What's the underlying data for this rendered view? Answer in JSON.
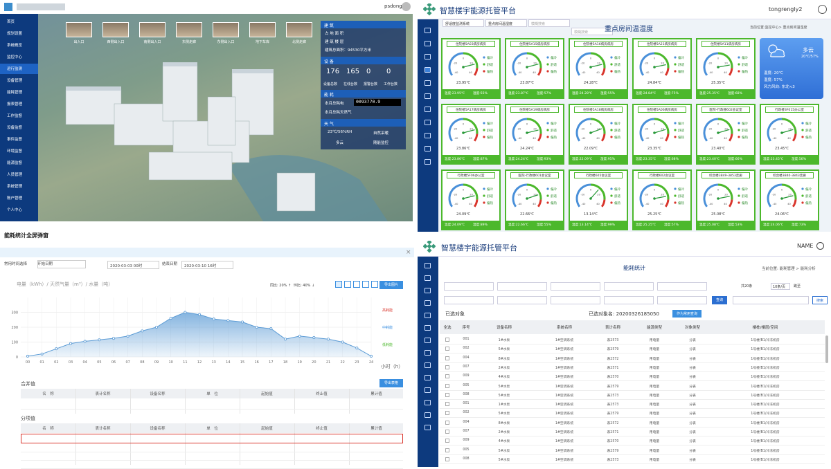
{
  "tl": {
    "user": "psdong1",
    "menu": [
      "首页",
      "规划设置",
      "系统概览",
      "监控中心",
      "运行监测",
      "设备管理",
      "能耗管理",
      "报表管理",
      "工作监督",
      "设备监督",
      "事件监督",
      "环境监督",
      "能源监督",
      "人员管理",
      "系统管理",
      "账户管理",
      "个人中心"
    ],
    "cameras": [
      "出入口",
      "西侧出入口",
      "南侧出入口",
      "东侧走廊",
      "东侧出入口",
      "地下车库",
      "北侧走廊"
    ],
    "building": {
      "title": "建 筑",
      "lines": [
        "占 地 面 积",
        "建 筑 楼 层",
        "建筑总面积：94530平方米"
      ]
    },
    "devices": {
      "title": "设 备",
      "nums": [
        "176",
        "165",
        "0",
        "0"
      ],
      "labels": [
        "设备总数",
        "在线台数",
        "报警台数",
        "工作台数"
      ]
    },
    "energy": {
      "title": "能 耗",
      "lines": [
        "本月总耗电",
        "本月总耗天然气"
      ],
      "reading": "0093770.9"
    },
    "weather": {
      "title": "天 气",
      "temp": "23℃/56%RH",
      "sky": "多云",
      "items": [
        "自然采暖",
        "随能监控"
      ]
    }
  },
  "tr": {
    "title": "智慧楼宇能源托管平台",
    "user": "tongrengly2",
    "filters": [
      "舒适度监测系统",
      "重点房间温湿度",
      "模糊搜索",
      "模糊搜索"
    ],
    "heading": "重点房间温湿度",
    "breadcrumb": "当前位置:监控中心> 重点房间温湿度",
    "gauge_ticks": [
      -40,
      -20,
      0,
      20,
      40
    ],
    "comfort_labels": [
      "偏冷",
      "舒适",
      "偏热"
    ],
    "cards": [
      {
        "name": "住院楼5A03病房病房",
        "temp": 23.95,
        "temp_label": "23.95℃",
        "t_text": "温度:23.95℃",
        "h_text": "湿度:55%"
      },
      {
        "name": "住院楼5A15病房病房",
        "temp": 23.87,
        "temp_label": "23.87℃",
        "t_text": "温度:23.87℃",
        "h_text": "湿度:57%"
      },
      {
        "name": "住院楼5A16病房病房",
        "temp": 24.28,
        "temp_label": "24.28℃",
        "t_text": "温度:24.28℃",
        "h_text": "湿度:55%"
      },
      {
        "name": "住院楼5A21病房病房",
        "temp": 24.84,
        "temp_label": "24.84℃",
        "t_text": "温度:24.84℃",
        "h_text": "湿度:75%"
      },
      {
        "name": "住院楼5A11病房病房",
        "temp": 25.35,
        "temp_label": "25.35℃",
        "t_text": "温度:25.35℃",
        "h_text": "湿度:68%"
      },
      null,
      {
        "name": "住院楼5A17病房病房",
        "temp": 23.86,
        "temp_label": "23.86℃",
        "t_text": "温度:23.86℃",
        "h_text": "湿度:87%"
      },
      {
        "name": "住院楼5A19病房病房",
        "temp": 24.24,
        "temp_label": "24.24℃",
        "t_text": "温度:24.24℃",
        "h_text": "湿度:93%"
      },
      {
        "name": "住院楼5A18病房病房",
        "temp": 22.09,
        "temp_label": "22.09℃",
        "t_text": "温度:22.09℃",
        "h_text": "湿度:95%"
      },
      {
        "name": "住院楼5A06病房病房",
        "temp": 23.35,
        "temp_label": "23.35℃",
        "t_text": "温度:23.35℃",
        "h_text": "湿度:68%"
      },
      {
        "name": "医院-行政楼602会议室",
        "temp": 23.4,
        "temp_label": "23.40℃",
        "t_text": "温度:23.40℃",
        "h_text": "湿度:66%"
      },
      {
        "name": "行政楼3F015办公室",
        "temp": 23.45,
        "temp_label": "23.45℃",
        "t_text": "温度:23.45℃",
        "h_text": "湿度:56%"
      },
      {
        "name": "行政楼5F06办公室",
        "temp": 24.09,
        "temp_label": "24.09℃",
        "t_text": "温度:24.09℃",
        "h_text": "湿度:89%"
      },
      {
        "name": "医院-行政楼601会议室",
        "temp": 22.66,
        "temp_label": "22.66℃",
        "t_text": "温度:22.66℃",
        "h_text": "湿度:55%"
      },
      {
        "name": "行政楼605会议室",
        "temp": 13.14,
        "temp_label": "13.14℃",
        "t_text": "温度:13.14℃",
        "h_text": "湿度:99%"
      },
      {
        "name": "行政楼602会议室",
        "temp": 25.25,
        "temp_label": "25.25℃",
        "t_text": "温度:25.25℃",
        "h_text": "湿度:57%"
      },
      {
        "name": "综合楼3849-3853走廊",
        "temp": 25.08,
        "temp_label": "25.08℃",
        "t_text": "温度:25.08℃",
        "h_text": "湿度:53%"
      },
      {
        "name": "综合楼3840-3843走廊",
        "temp": 24.06,
        "temp_label": "24.06℃",
        "t_text": "温度:24.06℃",
        "h_text": "湿度:73%"
      }
    ],
    "weather": {
      "sky": "多云",
      "range": "20℃/57%",
      "lines": [
        "温度: 20℃",
        "湿度: 57%",
        "风力风向: 东北<3"
      ]
    }
  },
  "bl": {
    "title": "能耗统计全屏弹窗",
    "filters": [
      "常用时间选择",
      "开始日期",
      "2020-03-03 00时",
      "结束日期",
      "2020-03-10 16时"
    ],
    "yoy": "同比: 20% ↑",
    "mom": "环比: 40% ↓",
    "export_img": "导出图片",
    "levels": [
      "高耗能",
      "中耗能",
      "低耗能"
    ],
    "merged": "合并值",
    "export_table": "导出表格",
    "split": "分项值",
    "headers": [
      "名　称",
      "表计名称",
      "设备名称",
      "单　位",
      "起始值",
      "终止值",
      "累计值"
    ]
  },
  "chart_data": {
    "type": "area",
    "title": "电量（kWh）/ 天然气量（m³）/ 水量（吨）",
    "x_label": "小时（h）",
    "categories": [
      "00",
      "01",
      "02",
      "03",
      "04",
      "05",
      "06",
      "07",
      "08",
      "09",
      "10",
      "11",
      "12",
      "13",
      "14",
      "15",
      "16",
      "17",
      "18",
      "19",
      "20",
      "21",
      "22",
      "23",
      "24"
    ],
    "values": [
      5,
      20,
      55,
      90,
      105,
      115,
      125,
      140,
      175,
      200,
      260,
      300,
      285,
      255,
      245,
      235,
      200,
      190,
      120,
      140,
      130,
      120,
      100,
      60,
      5
    ],
    "color": "#5b9bd5",
    "ylim": [
      0,
      400
    ],
    "yticks": [
      0,
      100,
      200,
      300
    ],
    "grid": true
  },
  "br": {
    "title": "智慧楼宇能源托管平台",
    "user": "NAME",
    "heading": "能耗统计",
    "breadcrumb": "当前位置: 能耗管理 > 能耗分析",
    "total": "共20条",
    "page_size": "10条/页",
    "goto": "跳至",
    "query": "查询",
    "search": "搜索",
    "selected": "已选对象",
    "selected_name": "已选对象名: 20200326185050",
    "save_query": "作为常用查询",
    "headers": [
      "全选",
      "序号",
      "设备名称",
      "系统名称",
      "表计名称",
      "能源类型",
      "对象类型",
      "楼栋/楼层/空间"
    ],
    "rows": [
      [
        "001",
        "1#水泵",
        "1#空调系统",
        "表2573",
        "用电量",
        "分表",
        "1号楼/B1/冷冻机房"
      ],
      [
        "002",
        "5#水泵",
        "1#空调系统",
        "表2579",
        "用电量",
        "分表",
        "1号楼/B1/冷冻机房"
      ],
      [
        "004",
        "8#水泵",
        "1#空调系统",
        "表2572",
        "用电量",
        "分表",
        "1号楼/B1/冷冻机房"
      ],
      [
        "007",
        "2#水泵",
        "1#空调系统",
        "表2571",
        "用电量",
        "分表",
        "1号楼/B1/冷冻机房"
      ],
      [
        "009",
        "4#水泵",
        "1#空调系统",
        "表2570",
        "用电量",
        "分表",
        "1号楼/B1/冷冻机房"
      ],
      [
        "005",
        "5#水泵",
        "1#空调系统",
        "表2579",
        "用电量",
        "分表",
        "1号楼/B1/冷冻机房"
      ],
      [
        "008",
        "5#水泵",
        "1#空调系统",
        "表2573",
        "用电量",
        "分表",
        "1号楼/B1/冷冻机房"
      ],
      [
        "001",
        "1#水泵",
        "1#空调系统",
        "表2573",
        "用电量",
        "分表",
        "1号楼/B1/冷冻机房"
      ],
      [
        "002",
        "5#水泵",
        "1#空调系统",
        "表2579",
        "用电量",
        "分表",
        "1号楼/B1/冷冻机房"
      ],
      [
        "004",
        "8#水泵",
        "1#空调系统",
        "表2572",
        "用电量",
        "分表",
        "1号楼/B1/冷冻机房"
      ],
      [
        "007",
        "2#水泵",
        "1#空调系统",
        "表2571",
        "用电量",
        "分表",
        "1号楼/B1/冷冻机房"
      ],
      [
        "009",
        "4#水泵",
        "1#空调系统",
        "表2570",
        "用电量",
        "分表",
        "1号楼/B1/冷冻机房"
      ],
      [
        "005",
        "5#水泵",
        "1#空调系统",
        "表2579",
        "用电量",
        "分表",
        "1号楼/B1/冷冻机房"
      ],
      [
        "008",
        "5#水泵",
        "1#空调系统",
        "表2573",
        "用电量",
        "分表",
        "1号楼/B1/冷冻机房"
      ]
    ]
  }
}
